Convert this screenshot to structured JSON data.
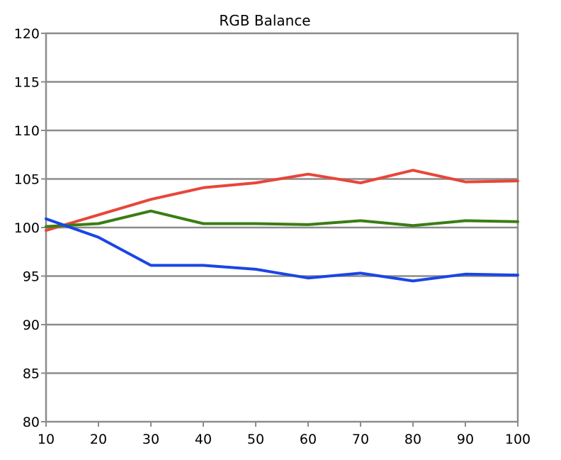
{
  "chart_data": {
    "type": "line",
    "title": "RGB Balance",
    "xlabel": "",
    "ylabel": "",
    "x": [
      10,
      20,
      30,
      40,
      50,
      60,
      70,
      80,
      90,
      100
    ],
    "xlim": [
      10,
      100
    ],
    "ylim": [
      80,
      120
    ],
    "x_ticks": [
      10,
      20,
      30,
      40,
      50,
      60,
      70,
      80,
      90,
      100
    ],
    "y_ticks": [
      80,
      85,
      90,
      95,
      100,
      105,
      110,
      115,
      120
    ],
    "grid": "horizontal",
    "series": [
      {
        "color": "#e8463a",
        "values": [
          99.7,
          101.3,
          102.9,
          104.1,
          104.6,
          105.5,
          104.6,
          105.9,
          104.7,
          104.8
        ]
      },
      {
        "color": "#3a7d14",
        "values": [
          100.1,
          100.4,
          101.7,
          100.4,
          100.4,
          100.3,
          100.7,
          100.2,
          100.7,
          100.6
        ]
      },
      {
        "color": "#1a45e6",
        "values": [
          100.9,
          99.0,
          96.1,
          96.1,
          95.7,
          94.8,
          95.3,
          94.5,
          95.2,
          95.1
        ]
      }
    ]
  },
  "colors": {
    "grid": "#8c8c8c",
    "axis": "#8c8c8c",
    "background": "#ffffff"
  }
}
